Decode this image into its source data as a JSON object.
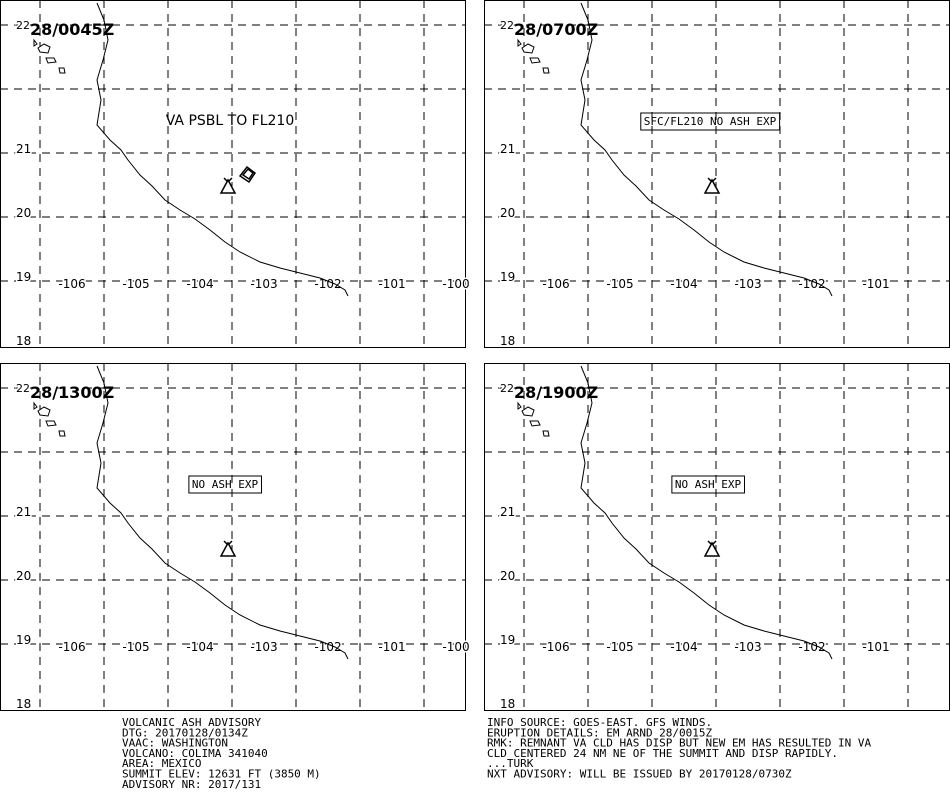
{
  "panels": [
    {
      "time": "28/0045Z",
      "annotation": "VA PSBL TO FL210",
      "annotation_boxed": false,
      "lat_labels": [
        "22",
        "21",
        "20",
        "19",
        "18"
      ],
      "lon_labels": [
        "-106",
        "-105",
        "-104",
        "-103",
        "-102",
        "-101",
        "-100"
      ]
    },
    {
      "time": "28/0700Z",
      "annotation": "SFC/FL210 NO ASH EXP",
      "annotation_boxed": true,
      "lat_labels": [
        "22",
        "21",
        "20",
        "19",
        "18"
      ],
      "lon_labels": [
        "-106",
        "-105",
        "-104",
        "-103",
        "-102",
        "-101"
      ]
    },
    {
      "time": "28/1300Z",
      "annotation": "NO ASH EXP",
      "annotation_boxed": true,
      "lat_labels": [
        "22",
        "21",
        "20",
        "19",
        "18"
      ],
      "lon_labels": [
        "-106",
        "-105",
        "-104",
        "-103",
        "-102",
        "-101",
        "-100"
      ]
    },
    {
      "time": "28/1900Z",
      "annotation": "NO ASH EXP",
      "annotation_boxed": true,
      "lat_labels": [
        "22",
        "21",
        "20",
        "19",
        "18"
      ],
      "lon_labels": [
        "-106",
        "-105",
        "-104",
        "-103",
        "-102",
        "-101"
      ]
    }
  ],
  "advisory": {
    "left": [
      "VOLCANIC ASH ADVISORY",
      "DTG: 20170128/0134Z",
      "VAAC: WASHINGTON",
      "VOLCANO: COLIMA 341040",
      "AREA: MEXICO",
      "SUMMIT ELEV: 12631 FT (3850 M)",
      "ADVISORY NR: 2017/131"
    ],
    "right": [
      "INFO SOURCE: GOES-EAST. GFS WINDS.",
      "ERUPTION DETAILS: EM ARND 28/0015Z",
      "RMK: REMNANT VA CLD HAS DISP BUT NEW EM HAS RESULTED IN VA",
      "CLD CENTERED 24 NM NE OF THE SUMMIT AND DISP RAPIDLY.",
      "...TURK",
      "NXT ADVISORY: WILL BE ISSUED BY 20170128/0730Z"
    ]
  }
}
